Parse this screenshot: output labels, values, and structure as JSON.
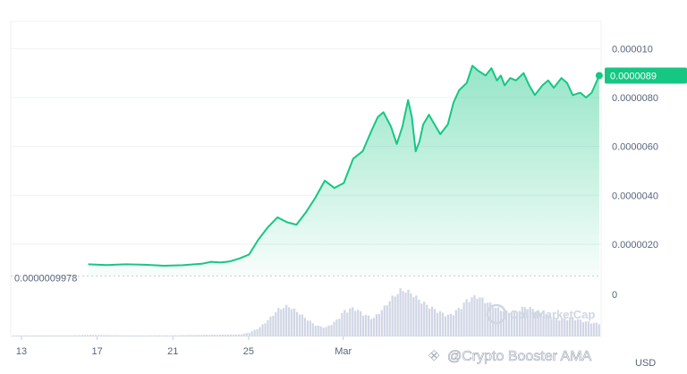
{
  "chart_data": {
    "type": "area",
    "colors": {
      "line": "#16c784",
      "fill": "#16c784",
      "tag_bg": "#16c784",
      "volume": "#c9cfe0",
      "grid": "#eef1f6",
      "axis_text": "#58667e"
    },
    "y_axis": {
      "ticks": [
        "0.000010",
        "0.0000080",
        "0.0000060",
        "0.0000040",
        "0.0000020"
      ],
      "tick_values": [
        1e-05,
        8e-06,
        6e-06,
        4e-06,
        2e-06
      ],
      "ylim": [
        9e-07,
        1.06e-05
      ]
    },
    "x_axis": {
      "ticks": [
        {
          "label": "13",
          "x": 0
        },
        {
          "label": "17",
          "x": 4
        },
        {
          "label": "21",
          "x": 8
        },
        {
          "label": "25",
          "x": 12
        },
        {
          "label": "Mar",
          "x": 17
        }
      ],
      "xlim": [
        0,
        31.1
      ]
    },
    "volume_axis": {
      "label": "0"
    },
    "baseline": {
      "value": 9.978e-07,
      "label": "0.0000009978"
    },
    "current_price": {
      "value": 8.9e-06,
      "label": "0.0000089"
    },
    "currency_label": "USD",
    "series": [
      {
        "x": [
          4,
          5,
          6,
          7,
          8,
          9,
          10,
          10.5,
          11,
          11.5,
          12,
          12.5,
          13,
          13.5,
          14,
          14.5,
          15,
          15.5,
          16,
          16.5,
          17,
          17.5,
          18,
          18.5,
          19,
          19.3,
          19.6,
          20,
          20.3,
          20.6,
          20.9,
          21.1,
          21.3,
          21.5,
          21.7,
          22,
          22.3,
          22.6,
          23,
          23.3,
          23.6,
          24,
          24.3,
          24.6,
          25,
          25.3,
          25.6,
          25.8,
          26,
          26.3,
          26.6,
          27,
          27.3,
          27.6,
          28,
          28.3,
          28.6,
          29,
          29.3,
          29.6,
          30,
          30.3,
          30.6,
          31
        ],
        "y": [
          1.18e-06,
          1.15e-06,
          1.18e-06,
          1.16e-06,
          1.12e-06,
          1.14e-06,
          1.2e-06,
          1.28e-06,
          1.25e-06,
          1.3e-06,
          1.42e-06,
          1.58e-06,
          2.2e-06,
          2.7e-06,
          3.1e-06,
          2.9e-06,
          2.8e-06,
          3.3e-06,
          3.9e-06,
          4.6e-06,
          4.3e-06,
          4.5e-06,
          5.5e-06,
          5.8e-06,
          6.7e-06,
          7.2e-06,
          7.4e-06,
          6.8e-06,
          6.1e-06,
          6.8e-06,
          7.9e-06,
          7.2e-06,
          5.8e-06,
          6.2e-06,
          6.9e-06,
          7.3e-06,
          6.9e-06,
          6.5e-06,
          6.9e-06,
          7.8e-06,
          8.3e-06,
          8.6e-06,
          9.3e-06,
          9.1e-06,
          8.9e-06,
          9.2e-06,
          8.7e-06,
          8.9e-06,
          8.5e-06,
          8.8e-06,
          8.7e-06,
          9e-06,
          8.5e-06,
          8.1e-06,
          8.5e-06,
          8.7e-06,
          8.4e-06,
          8.8e-06,
          8.6e-06,
          8.1e-06,
          8.2e-06,
          8e-06,
          8.2e-06,
          8.9e-06
        ]
      }
    ],
    "volume": {
      "x": [
        0,
        3,
        4,
        6,
        8,
        10,
        12,
        12.5,
        13,
        13.5,
        14,
        14.5,
        15,
        15.5,
        16,
        16.5,
        17,
        17.5,
        18,
        18.5,
        19,
        19.5,
        20,
        20.5,
        21,
        21.5,
        22,
        22.5,
        23,
        23.5,
        24,
        24.5,
        25,
        25.5,
        26,
        26.5,
        27,
        27.5,
        28,
        28.5,
        29,
        29.5,
        30,
        30.5,
        31
      ],
      "h": [
        0.02,
        0.02,
        0.03,
        0.02,
        0.02,
        0.03,
        0.04,
        0.08,
        0.18,
        0.35,
        0.55,
        0.62,
        0.5,
        0.35,
        0.22,
        0.18,
        0.3,
        0.52,
        0.58,
        0.45,
        0.36,
        0.55,
        0.78,
        0.95,
        0.88,
        0.72,
        0.6,
        0.5,
        0.42,
        0.55,
        0.75,
        0.82,
        0.7,
        0.58,
        0.5,
        0.48,
        0.6,
        0.55,
        0.45,
        0.38,
        0.35,
        0.38,
        0.32,
        0.28,
        0.26
      ]
    }
  },
  "watermark": {
    "text": "CoinMarketCap"
  },
  "credit": {
    "text": "@Crypto Booster AMA"
  }
}
